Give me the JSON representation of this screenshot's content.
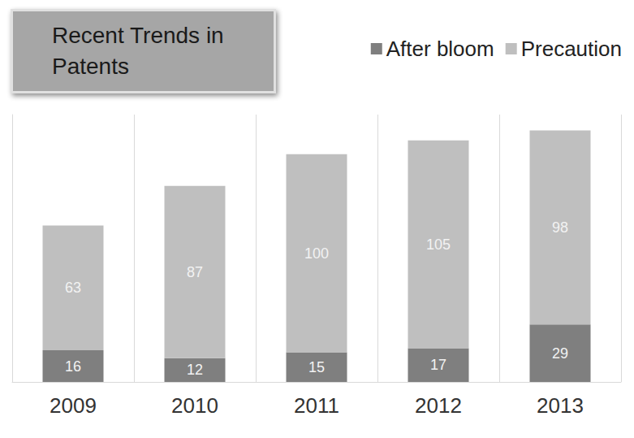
{
  "chart_data": {
    "type": "bar",
    "title": "Recent Trends in Patents",
    "categories": [
      "2009",
      "2010",
      "2011",
      "2012",
      "2013"
    ],
    "series": [
      {
        "name": "After bloom",
        "color": "#7f7f7f",
        "values": [
          16,
          12,
          15,
          17,
          29
        ]
      },
      {
        "name": "Precaution",
        "color": "#bfbfbf",
        "values": [
          63,
          87,
          100,
          105,
          98
        ]
      }
    ],
    "stacked": true,
    "data_labels": true,
    "legend": "top-right",
    "tick_labels": "x",
    "grid": true,
    "ylim": [
      0,
      135
    ]
  }
}
